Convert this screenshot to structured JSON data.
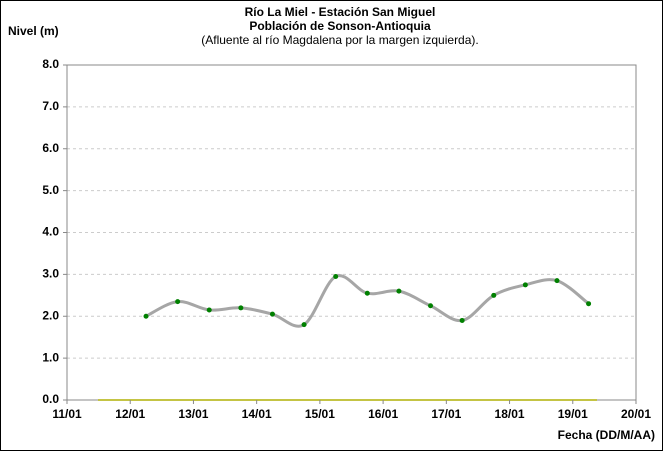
{
  "chart_data": {
    "type": "line",
    "title": "Río La Miel  - Estación San Miguel",
    "subtitle": "Población de Sonson-Antioquia",
    "annotation": "(Afluente al río Magdalena por la margen izquierda).",
    "y_label": "Nivel (m)",
    "x_label": "Fecha (DD/M/AA)",
    "x": [
      12.25,
      12.75,
      13.25,
      13.75,
      14.25,
      14.75,
      15.25,
      15.75,
      16.25,
      16.75,
      17.25,
      17.75,
      18.25,
      18.75,
      19.25
    ],
    "series": [
      {
        "color": "#a6a6a6",
        "marker_color": "#008000",
        "values": [
          2.0,
          2.35,
          2.15,
          2.2,
          2.05,
          1.8,
          2.95,
          2.55,
          2.6,
          2.25,
          1.9,
          2.5,
          2.75,
          2.85,
          2.3
        ]
      }
    ],
    "xlim": [
      11,
      20
    ],
    "xticks": [
      {
        "value": 11,
        "label": "11/01"
      },
      {
        "value": 12,
        "label": "12/01"
      },
      {
        "value": 13,
        "label": "13/01"
      },
      {
        "value": 14,
        "label": "14/01"
      },
      {
        "value": 15,
        "label": "15/01"
      },
      {
        "value": 16,
        "label": "16/01"
      },
      {
        "value": 17,
        "label": "17/01"
      },
      {
        "value": 18,
        "label": "18/01"
      },
      {
        "value": 19,
        "label": "19/01"
      },
      {
        "value": 20,
        "label": "20/01"
      }
    ],
    "ylim": [
      0,
      8
    ],
    "yticks": [
      {
        "value": 0,
        "label": "0.0"
      },
      {
        "value": 1,
        "label": "1.0"
      },
      {
        "value": 2,
        "label": "2.0"
      },
      {
        "value": 3,
        "label": "3.0"
      },
      {
        "value": 4,
        "label": "4.0"
      },
      {
        "value": 5,
        "label": "5.0"
      },
      {
        "value": 6,
        "label": "6.0"
      },
      {
        "value": 7,
        "label": "7.0"
      },
      {
        "value": 8,
        "label": "8.0"
      }
    ],
    "grid": true
  }
}
